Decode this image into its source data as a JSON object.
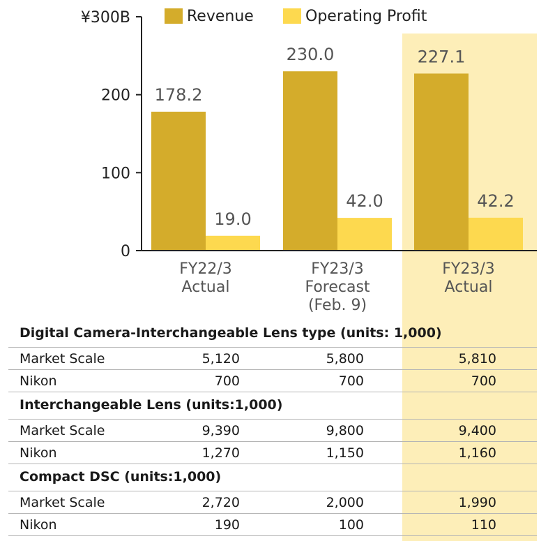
{
  "colors": {
    "revenue": "#d4ac2b",
    "operating_profit": "#fdd94f",
    "highlight": "#fdeeb8"
  },
  "chart_data": {
    "type": "bar",
    "categories": [
      [
        "FY22/3",
        "Actual"
      ],
      [
        "FY23/3",
        "Forecast",
        "(Feb. 9)"
      ],
      [
        "FY23/3",
        "Actual"
      ]
    ],
    "series": [
      {
        "name": "Revenue",
        "values": [
          178.2,
          230.0,
          227.1
        ],
        "labels": [
          "178.2",
          "230.0",
          "227.1"
        ]
      },
      {
        "name": "Operating Profit",
        "values": [
          19.0,
          42.0,
          42.2
        ],
        "labels": [
          "19.0",
          "42.0",
          "42.2"
        ]
      }
    ],
    "yticks": [
      {
        "value": 0,
        "label": "0"
      },
      {
        "value": 100,
        "label": "100"
      },
      {
        "value": 200,
        "label": "200"
      },
      {
        "value": 300,
        "label": "¥300B"
      }
    ],
    "ylim": [
      0,
      300
    ],
    "highlighted_category_index": 2
  },
  "table": {
    "sections": [
      {
        "title": "Digital Camera-Interchangeable Lens type (units: 1,000)",
        "rows": [
          {
            "label": "Market Scale",
            "values": [
              "5,120",
              "5,800",
              "5,810"
            ]
          },
          {
            "label": "Nikon",
            "values": [
              "700",
              "700",
              "700"
            ]
          }
        ]
      },
      {
        "title": "Interchangeable Lens (units:1,000)",
        "rows": [
          {
            "label": "Market Scale",
            "values": [
              "9,390",
              "9,800",
              "9,400"
            ]
          },
          {
            "label": "Nikon",
            "values": [
              "1,270",
              "1,150",
              "1,160"
            ]
          }
        ]
      },
      {
        "title": "Compact DSC (units:1,000)",
        "rows": [
          {
            "label": "Market Scale",
            "values": [
              "2,720",
              "2,000",
              "1,990"
            ]
          },
          {
            "label": "Nikon",
            "values": [
              "190",
              "100",
              "110"
            ]
          }
        ]
      }
    ]
  }
}
